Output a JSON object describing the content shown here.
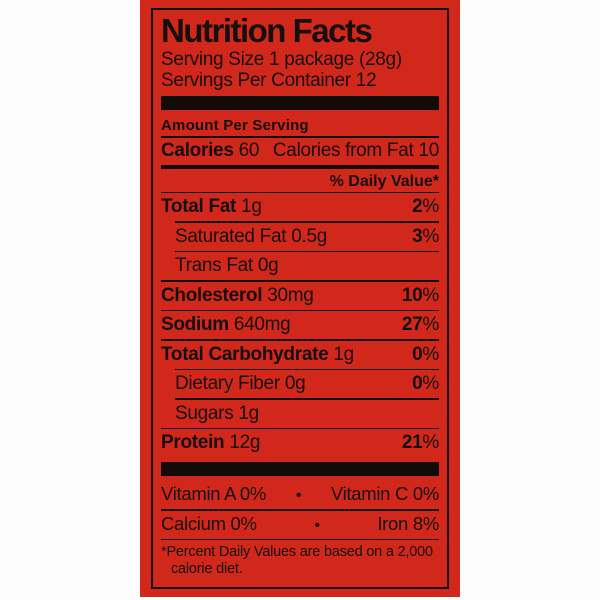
{
  "label": {
    "title": "Nutrition Facts",
    "serving_size": "Serving Size 1 package (28g)",
    "servings_per_container": "Servings Per Container 12",
    "amount_per_serving": "Amount Per Serving",
    "calories_label": "Calories",
    "calories_value": "60",
    "calories_from_fat": "Calories from Fat 10",
    "daily_value_header": "% Daily Value*",
    "nutrients": [
      {
        "name": "Total Fat",
        "amount": "1g",
        "dv": "2",
        "pct": "%",
        "sub": false
      },
      {
        "name": "Saturated Fat",
        "amount": "0.5g",
        "dv": "3",
        "pct": "%",
        "sub": true
      },
      {
        "name": "Trans Fat",
        "amount": "0g",
        "dv": "",
        "pct": "",
        "sub": true
      },
      {
        "name": "Cholesterol",
        "amount": "30mg",
        "dv": "10",
        "pct": "%",
        "sub": false
      },
      {
        "name": "Sodium",
        "amount": "640mg",
        "dv": "27",
        "pct": "%",
        "sub": false
      },
      {
        "name": "Total Carbohydrate",
        "amount": "1g",
        "dv": "0",
        "pct": "%",
        "sub": false
      },
      {
        "name": "Dietary Fiber",
        "amount": "0g",
        "dv": "0",
        "pct": "%",
        "sub": true
      },
      {
        "name": "Sugars",
        "amount": "1g",
        "dv": "",
        "pct": "",
        "sub": true
      },
      {
        "name": "Protein",
        "amount": "12g",
        "dv": "21",
        "pct": "%",
        "sub": false
      }
    ],
    "micronutrients": [
      {
        "left": "Vitamin A 0%",
        "bullet": "•",
        "right": "Vitamin C 0%"
      },
      {
        "left": "Calcium 0%",
        "bullet": "•",
        "right": "Iron 8%"
      }
    ],
    "footnote_line1": "*Percent Daily Values are based on a 2,000",
    "footnote_line2": "calorie diet.",
    "colors": {
      "label_red": "#d2281b",
      "text_black": "#16100d"
    }
  }
}
